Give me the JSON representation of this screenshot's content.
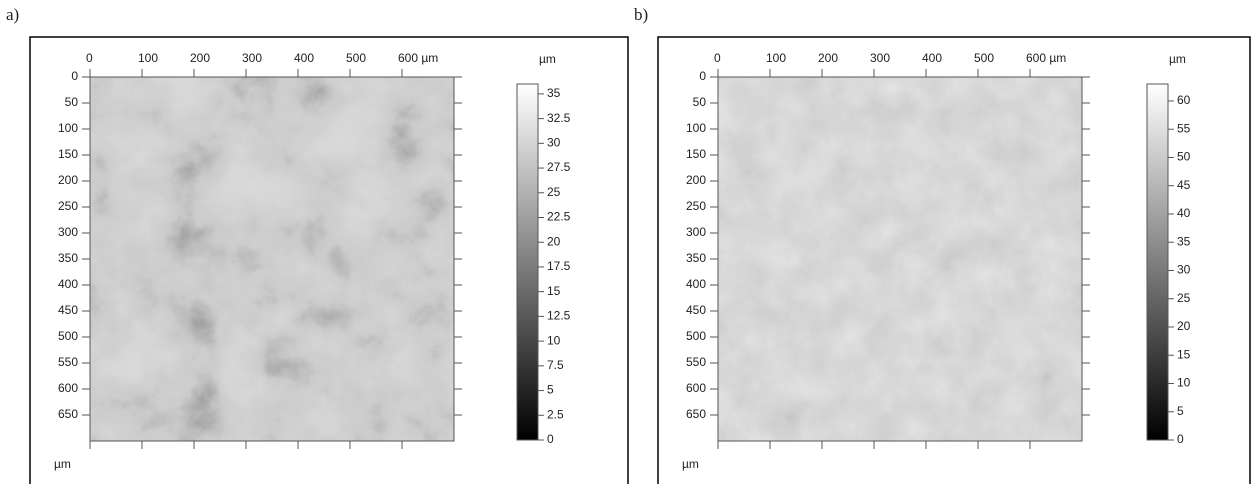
{
  "chart_data": [
    {
      "type": "heatmap",
      "panel_label": "a)",
      "xlim": [
        0,
        700
      ],
      "xticks": [
        0,
        100,
        200,
        300,
        400,
        500,
        {
          "value": 600,
          "label": "600 µm"
        }
      ],
      "ylim": [
        0,
        700
      ],
      "yticks": [
        0,
        50,
        100,
        150,
        200,
        250,
        300,
        350,
        400,
        450,
        500,
        550,
        600,
        650
      ],
      "y_label": "µm",
      "colorbar": {
        "label": "µm",
        "lim": [
          0,
          36
        ],
        "ticks": [
          0,
          2.5,
          5,
          7.5,
          10,
          12.5,
          15,
          17.5,
          20,
          22.5,
          25,
          27.5,
          30,
          32.5,
          35
        ]
      }
    },
    {
      "type": "heatmap",
      "panel_label": "b)",
      "xlim": [
        0,
        700
      ],
      "xticks": [
        0,
        100,
        200,
        300,
        400,
        500,
        {
          "value": 600,
          "label": "600 µm"
        }
      ],
      "ylim": [
        0,
        700
      ],
      "yticks": [
        0,
        50,
        100,
        150,
        200,
        250,
        300,
        350,
        400,
        450,
        500,
        550,
        600,
        650
      ],
      "y_label": "µm",
      "colorbar": {
        "label": "µm",
        "lim": [
          0,
          63
        ],
        "ticks": [
          0,
          5,
          10,
          15,
          20,
          25,
          30,
          35,
          40,
          45,
          50,
          55,
          60
        ]
      }
    }
  ]
}
